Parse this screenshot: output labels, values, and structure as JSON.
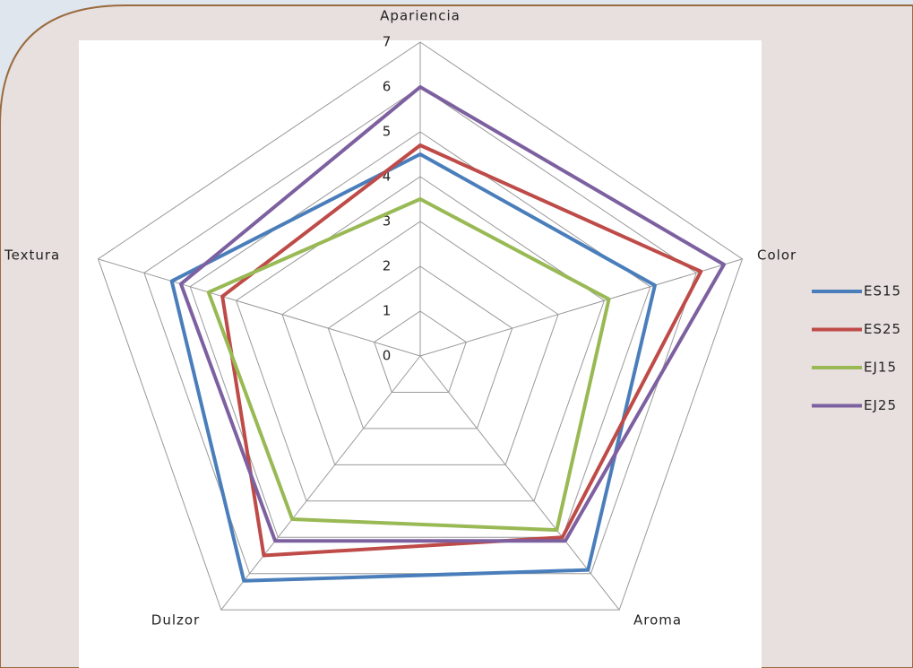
{
  "chart_data": {
    "type": "radar",
    "categories": [
      "Apariencia",
      "Color",
      "Aroma",
      "Dulzor",
      "Textura"
    ],
    "ylim": [
      0,
      7
    ],
    "yticks": [
      0,
      1,
      2,
      3,
      4,
      5,
      6,
      7
    ],
    "grid": true,
    "series": [
      {
        "name": "ES15",
        "color": "#4a7ebb",
        "values": [
          4.5,
          5.1,
          5.9,
          6.2,
          5.4
        ]
      },
      {
        "name": "ES25",
        "color": "#be4b48",
        "values": [
          4.7,
          6.1,
          5.0,
          5.5,
          4.3
        ]
      },
      {
        "name": "EJ15",
        "color": "#98b954",
        "values": [
          3.5,
          4.1,
          4.8,
          4.5,
          4.6
        ]
      },
      {
        "name": "EJ25",
        "color": "#7d60a0",
        "values": [
          6.0,
          6.6,
          5.1,
          5.1,
          5.2
        ]
      }
    ]
  }
}
